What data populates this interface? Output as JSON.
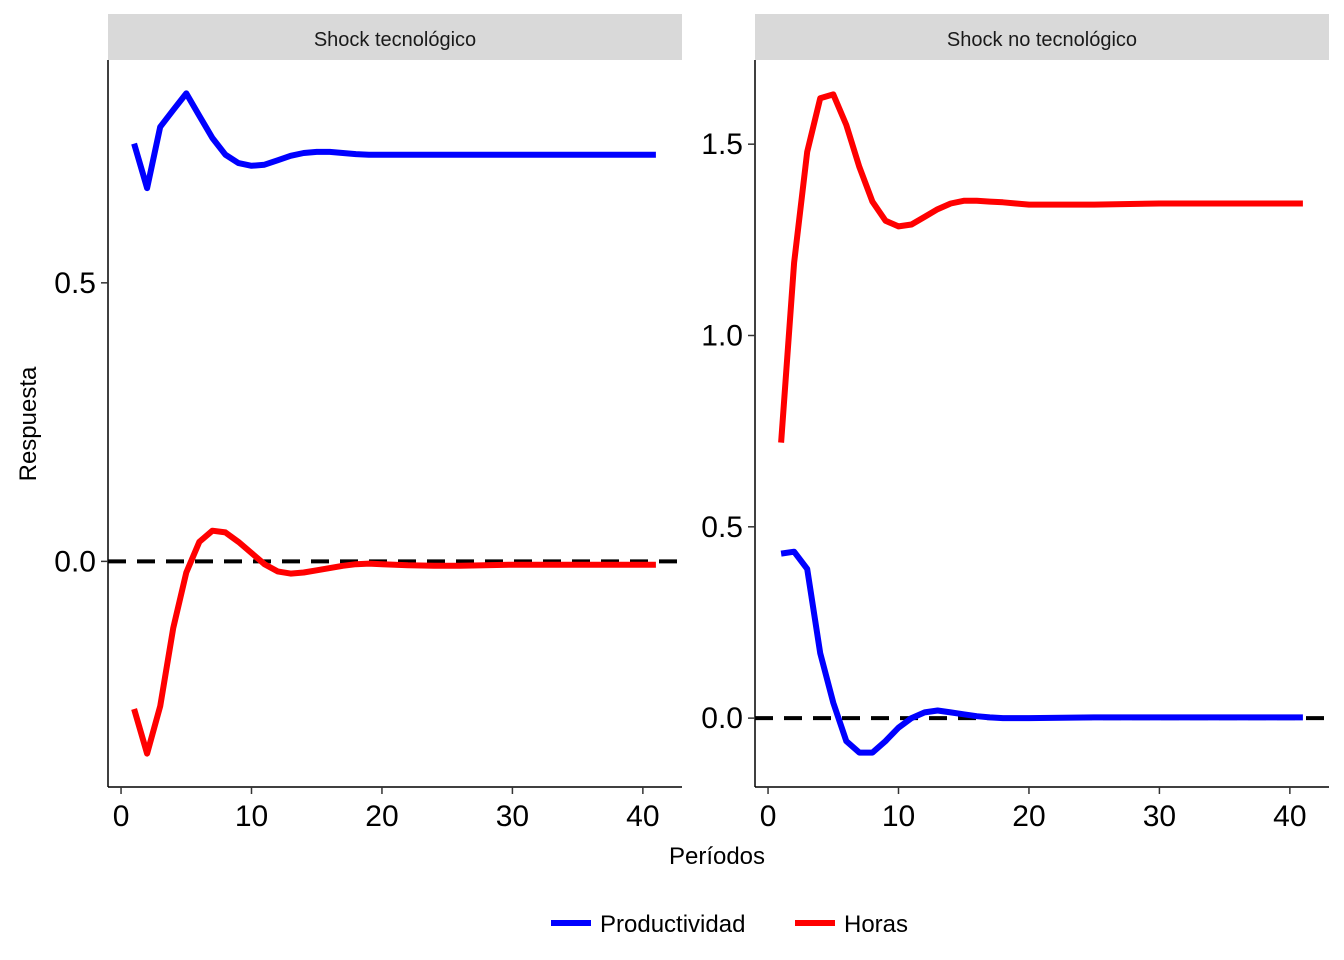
{
  "chart_data": {
    "type": "line",
    "xlabel": "Períodos",
    "ylabel": "Respuesta",
    "legend": {
      "position": "bottom",
      "entries": [
        {
          "name": "Productividad",
          "color": "#0000ff"
        },
        {
          "name": "Horas",
          "color": "#ff0000"
        }
      ]
    },
    "reference_line": {
      "y": 0,
      "style": "dashed",
      "color": "#000000"
    },
    "grid": false,
    "panels": [
      {
        "title": "Shock tecnológico",
        "xlim": [
          -1,
          43
        ],
        "ylim": [
          -0.405,
          0.9
        ],
        "x_ticks": [
          0,
          10,
          20,
          30,
          40
        ],
        "y_ticks": [
          0.0,
          0.5
        ],
        "y_tick_labels": [
          "0.0",
          "0.5"
        ],
        "series": [
          {
            "name": "Productividad",
            "color": "#0000ff",
            "x": [
              1,
              2,
              3,
              4,
              5,
              6,
              7,
              8,
              9,
              10,
              11,
              12,
              13,
              14,
              15,
              16,
              17,
              18,
              19,
              20,
              25,
              30,
              35,
              41
            ],
            "y": [
              0.75,
              0.67,
              0.78,
              0.81,
              0.84,
              0.8,
              0.76,
              0.73,
              0.715,
              0.71,
              0.712,
              0.72,
              0.728,
              0.733,
              0.735,
              0.735,
              0.733,
              0.731,
              0.73,
              0.73,
              0.73,
              0.73,
              0.73,
              0.73
            ]
          },
          {
            "name": "Horas",
            "color": "#ff0000",
            "x": [
              1,
              2,
              3,
              4,
              5,
              6,
              7,
              8,
              9,
              10,
              11,
              12,
              13,
              14,
              15,
              16,
              17,
              18,
              19,
              20,
              22,
              24,
              26,
              30,
              35,
              41
            ],
            "y": [
              -0.265,
              -0.345,
              -0.26,
              -0.12,
              -0.02,
              0.035,
              0.055,
              0.052,
              0.035,
              0.015,
              -0.005,
              -0.018,
              -0.022,
              -0.02,
              -0.016,
              -0.012,
              -0.008,
              -0.005,
              -0.004,
              -0.005,
              -0.007,
              -0.008,
              -0.008,
              -0.006,
              -0.006,
              -0.006
            ]
          }
        ]
      },
      {
        "title": "Shock no tecnológico",
        "xlim": [
          -1,
          43
        ],
        "ylim": [
          -0.18,
          1.72
        ],
        "x_ticks": [
          0,
          10,
          20,
          30,
          40
        ],
        "y_ticks": [
          0.0,
          0.5,
          1.0,
          1.5
        ],
        "y_tick_labels": [
          "0.0",
          "0.5",
          "1.0",
          "1.5"
        ],
        "series": [
          {
            "name": "Productividad",
            "color": "#0000ff",
            "x": [
              1,
              2,
              3,
              4,
              5,
              6,
              7,
              8,
              9,
              10,
              11,
              12,
              13,
              14,
              15,
              16,
              17,
              18,
              19,
              20,
              25,
              30,
              35,
              41
            ],
            "y": [
              0.43,
              0.435,
              0.39,
              0.17,
              0.04,
              -0.06,
              -0.09,
              -0.09,
              -0.06,
              -0.025,
              0.0,
              0.015,
              0.02,
              0.015,
              0.01,
              0.005,
              0.002,
              0.0,
              0.0,
              0.0,
              0.002,
              0.002,
              0.002,
              0.002
            ]
          },
          {
            "name": "Horas",
            "color": "#ff0000",
            "x": [
              1,
              2,
              3,
              4,
              5,
              6,
              7,
              8,
              9,
              10,
              11,
              12,
              13,
              14,
              15,
              16,
              17,
              18,
              19,
              20,
              25,
              30,
              35,
              41
            ],
            "y": [
              0.72,
              1.19,
              1.48,
              1.62,
              1.63,
              1.55,
              1.44,
              1.35,
              1.3,
              1.285,
              1.29,
              1.31,
              1.33,
              1.345,
              1.352,
              1.352,
              1.35,
              1.348,
              1.345,
              1.342,
              1.342,
              1.345,
              1.345,
              1.345
            ]
          }
        ]
      }
    ]
  }
}
